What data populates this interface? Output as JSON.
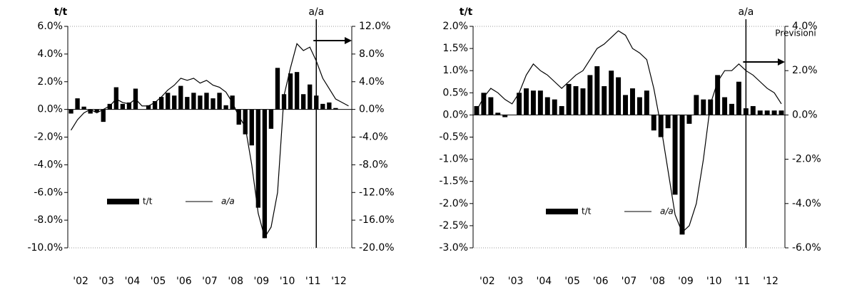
{
  "chart_data": [
    {
      "type": "bar",
      "y_label": "t/t",
      "y2_label": "a/a",
      "categories": [
        null,
        "'02",
        null,
        null,
        null,
        "'03",
        null,
        null,
        null,
        "'04",
        null,
        null,
        null,
        "'05",
        null,
        null,
        null,
        "'06",
        null,
        null,
        null,
        "'07",
        null,
        null,
        null,
        "'08",
        null,
        null,
        null,
        "'09",
        null,
        null,
        null,
        "'10",
        null,
        null,
        null,
        "'11",
        null,
        null,
        null,
        "'12",
        null,
        null
      ],
      "series": [
        {
          "name": "t/t",
          "color": "#000000",
          "values": [
            -0.3,
            0.8,
            0.2,
            -0.3,
            -0.2,
            -0.9,
            0.4,
            1.6,
            0.4,
            0.5,
            1.5,
            0.0,
            0.3,
            0.6,
            0.9,
            1.2,
            1.0,
            1.7,
            0.9,
            1.2,
            1.0,
            1.2,
            0.8,
            1.2,
            0.3,
            1.0,
            -1.1,
            -1.8,
            -2.6,
            -7.1,
            -9.3,
            -1.4,
            3.0,
            1.1,
            2.6,
            2.7,
            1.1,
            1.8,
            1.0,
            0.4,
            0.5,
            0.1,
            0.0,
            0.0
          ]
        },
        {
          "name": "a/a",
          "color": "#000000",
          "axis": "y2",
          "values": [
            -3.0,
            -1.5,
            -0.5,
            0.0,
            -0.5,
            0.0,
            0.5,
            1.5,
            1.0,
            0.8,
            1.5,
            0.5,
            0.5,
            1.0,
            1.8,
            2.8,
            3.5,
            4.5,
            4.2,
            4.5,
            3.8,
            4.2,
            3.5,
            3.2,
            2.5,
            1.0,
            -1.0,
            -2.5,
            -8.0,
            -15.0,
            -18.5,
            -17.0,
            -12.0,
            2.0,
            6.0,
            9.5,
            8.5,
            9.0,
            7.0,
            4.5,
            3.0,
            1.5,
            1.0,
            0.5
          ]
        }
      ],
      "ylim": [
        -10,
        6
      ],
      "yticks": [
        {
          "value": 6,
          "label": "6.0%"
        },
        {
          "value": 4,
          "label": "4.0%"
        },
        {
          "value": 2,
          "label": "2.0%"
        },
        {
          "value": 0,
          "label": "0.0%"
        },
        {
          "value": -2,
          "label": "-2.0%"
        },
        {
          "value": -4,
          "label": "-4.0%"
        },
        {
          "value": -6,
          "label": "-6.0%"
        },
        {
          "value": -8,
          "label": "-8.0%"
        },
        {
          "value": -10,
          "label": "-10.0%"
        }
      ],
      "y2lim": [
        -20,
        12
      ],
      "y2ticks": [
        {
          "value": 12,
          "label": "12.0%"
        },
        {
          "value": 8,
          "label": "8.0%"
        },
        {
          "value": 4,
          "label": "4.0%"
        },
        {
          "value": 0,
          "label": "0.0%"
        },
        {
          "value": -4,
          "label": "-4.0%"
        },
        {
          "value": -8,
          "label": "-8.0%"
        },
        {
          "value": -12,
          "label": "-12.0%"
        },
        {
          "value": -16,
          "label": "-16.0%"
        },
        {
          "value": -20,
          "label": "-20.0%"
        }
      ]
    },
    {
      "type": "bar",
      "y_label": "t/t",
      "y2_label": "a/a",
      "annotations": [
        "Previsioni"
      ],
      "categories": [
        null,
        "'02",
        null,
        null,
        null,
        "'03",
        null,
        null,
        null,
        "'04",
        null,
        null,
        null,
        "'05",
        null,
        null,
        null,
        "'06",
        null,
        null,
        null,
        "'07",
        null,
        null,
        null,
        "'08",
        null,
        null,
        null,
        "'09",
        null,
        null,
        null,
        "'10",
        null,
        null,
        null,
        "'11",
        null,
        null,
        null,
        "'12",
        null,
        null
      ],
      "series": [
        {
          "name": "t/t",
          "color": "#000000",
          "values": [
            0.2,
            0.5,
            0.4,
            0.05,
            -0.05,
            0.0,
            0.5,
            0.6,
            0.55,
            0.55,
            0.4,
            0.35,
            0.2,
            0.7,
            0.65,
            0.6,
            0.9,
            1.1,
            0.65,
            1.0,
            0.85,
            0.45,
            0.6,
            0.4,
            0.55,
            -0.35,
            -0.5,
            -0.3,
            -1.8,
            -2.7,
            -0.2,
            0.45,
            0.35,
            0.35,
            0.9,
            0.4,
            0.25,
            0.75,
            0.15,
            0.2,
            0.1,
            0.1,
            0.1,
            0.1
          ]
        },
        {
          "name": "a/a",
          "color": "#000000",
          "axis": "y2",
          "values": [
            0.2,
            0.8,
            1.2,
            1.0,
            0.7,
            0.5,
            1.0,
            1.8,
            2.3,
            2.0,
            1.8,
            1.5,
            1.2,
            1.5,
            1.8,
            2.0,
            2.5,
            3.0,
            3.2,
            3.5,
            3.8,
            3.6,
            3.0,
            2.8,
            2.5,
            1.2,
            -0.5,
            -2.5,
            -4.5,
            -5.3,
            -5.0,
            -4.0,
            -2.0,
            0.5,
            1.5,
            2.0,
            2.0,
            2.3,
            2.0,
            1.8,
            1.5,
            1.2,
            1.0,
            0.5
          ]
        }
      ],
      "ylim": [
        -3,
        2
      ],
      "yticks": [
        {
          "value": 2,
          "label": "2.0%"
        },
        {
          "value": 1.5,
          "label": "1.5%"
        },
        {
          "value": 1,
          "label": "1.0%"
        },
        {
          "value": 0.5,
          "label": "0.5%"
        },
        {
          "value": 0,
          "label": "0.0%"
        },
        {
          "value": -0.5,
          "label": "-0.5%"
        },
        {
          "value": -1,
          "label": "-1.0%"
        },
        {
          "value": -1.5,
          "label": "-1.5%"
        },
        {
          "value": -2,
          "label": "-2.0%"
        },
        {
          "value": -2.5,
          "label": "-2.5%"
        },
        {
          "value": -3,
          "label": "-3.0%"
        }
      ],
      "y2lim": [
        -6,
        4
      ],
      "y2ticks": [
        {
          "value": 4,
          "label": "4.0%"
        },
        {
          "value": 2,
          "label": "2.0%"
        },
        {
          "value": 0,
          "label": "0.0%"
        },
        {
          "value": -2,
          "label": "-2.0%"
        },
        {
          "value": -4,
          "label": "-4.0%"
        },
        {
          "value": -6,
          "label": "-6.0%"
        }
      ]
    }
  ]
}
